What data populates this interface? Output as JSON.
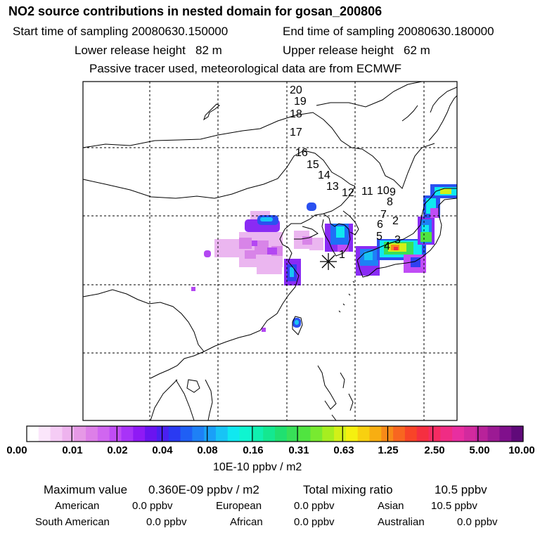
{
  "title": "NO2 source contributions in nested domain for gosan_200806",
  "header": {
    "start": "Start time of sampling 20080630.150000",
    "end": "End time of sampling 20080630.180000",
    "lower": "Lower release height   82 m",
    "upper": "Upper release height   62 m",
    "note": "Passive tracer used, meteorological data are from ECMWF"
  },
  "map": {
    "trajectory_labels": [
      "1",
      "2",
      "3",
      "4",
      "5",
      "6",
      "7",
      "8",
      "9",
      "10",
      "11",
      "12",
      "13",
      "14",
      "15",
      "16",
      "17",
      "18",
      "19",
      "20"
    ],
    "receptor": "gosan"
  },
  "colorbar": {
    "ticks": [
      "0.00",
      "0.01",
      "0.02",
      "0.04",
      "0.08",
      "0.16",
      "0.31",
      "0.63",
      "1.25",
      "2.50",
      "5.00",
      "10.00"
    ],
    "unit": "10E-10 ppbv / m2",
    "colors": [
      "#ffffff",
      "#fbe6fb",
      "#f5ccf5",
      "#eeb3ee",
      "#e699e6",
      "#dd7fe8",
      "#d066f0",
      "#c04cf5",
      "#a833f8",
      "#8f1af5",
      "#6a14f0",
      "#4a20f0",
      "#2a3af2",
      "#1f5ff5",
      "#1e80f6",
      "#1aa0f8",
      "#18c4f5",
      "#10e8f0",
      "#0ff5d0",
      "#10f0b0",
      "#14e890",
      "#20e070",
      "#38e058",
      "#50e440",
      "#78ea30",
      "#a6ee20",
      "#d2f018",
      "#f5f010",
      "#f8d010",
      "#f8ae12",
      "#f88a18",
      "#f86620",
      "#f84428",
      "#f52f40",
      "#f52b62",
      "#f02c84",
      "#e82ea0",
      "#d22a9e",
      "#b8229a",
      "#9c1a94",
      "#80108c",
      "#600a7a"
    ]
  },
  "stats": {
    "max_label": "Maximum value",
    "max_value": "0.360E-09 ppbv / m2",
    "total_label": "Total mixing ratio",
    "total_value": "10.5 ppbv",
    "regions": [
      {
        "name": "American",
        "value": "0.0 ppbv"
      },
      {
        "name": "European",
        "value": "0.0 ppbv"
      },
      {
        "name": "Asian",
        "value": "10.5 ppbv"
      },
      {
        "name": "South American",
        "value": "0.0 ppbv"
      },
      {
        "name": "African",
        "value": "0.0 ppbv"
      },
      {
        "name": "Australian",
        "value": "0.0 ppbv"
      }
    ]
  }
}
